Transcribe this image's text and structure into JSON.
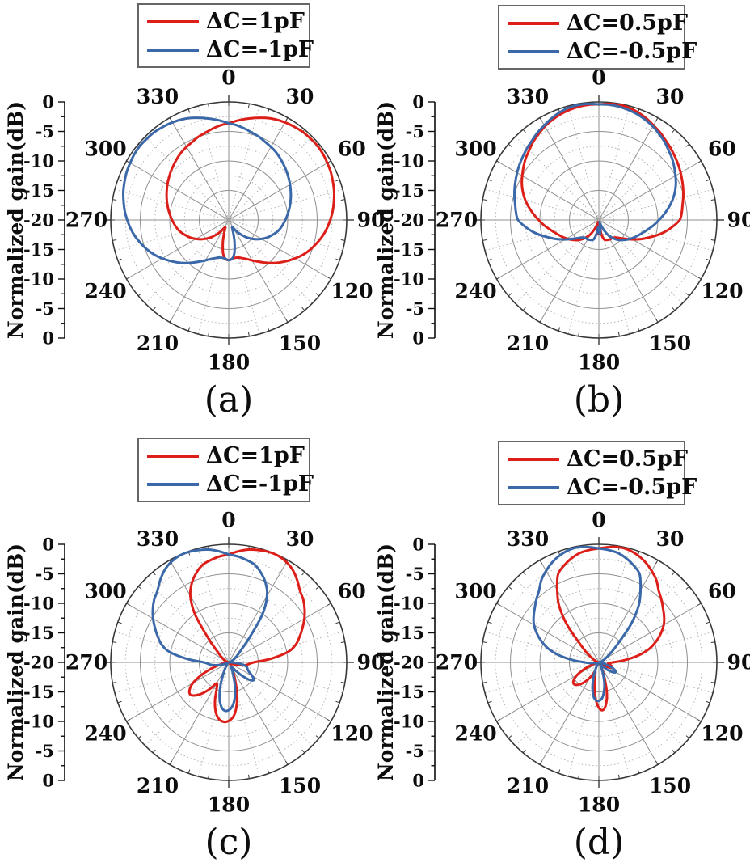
{
  "figure": {
    "axis_label": "Normalized gain(dB)",
    "radial_axis": {
      "tick_labels": [
        "0",
        "-5",
        "-10",
        "-15",
        "-20",
        "-15",
        "-10",
        "-5",
        "0"
      ],
      "range_db": [
        0,
        -20
      ],
      "ring_step_db": 2.5
    },
    "angular_axis": {
      "tick_labels": [
        "0",
        "30",
        "60",
        "90",
        "120",
        "150",
        "180",
        "210",
        "240",
        "270",
        "300",
        "330"
      ],
      "major_step_deg": 30,
      "minor_step_deg": 15
    },
    "colors": {
      "red": "#dd1f1a",
      "blue": "#3a68a8",
      "grid_major": "#8f8f8f",
      "grid_minor": "#b5b5b5",
      "outline": "#383838",
      "text": "#0d0d0d"
    }
  },
  "chart_data": [
    {
      "type": "polar-line",
      "caption": "(a)",
      "series": [
        {
          "name": "ΔC=1pF",
          "color": "#dd1f1a",
          "angle_step_deg": 5,
          "gain_db": [
            -3.6,
            -3.1,
            -2.6,
            -2.1,
            -1.6,
            -1.2,
            -0.9,
            -0.7,
            -0.5,
            -0.45,
            -0.4,
            -0.5,
            -0.7,
            -0.9,
            -1.2,
            -1.5,
            -1.9,
            -2.3,
            -2.8,
            -3.3,
            -3.9,
            -4.6,
            -5.3,
            -6.1,
            -7.0,
            -7.9,
            -8.8,
            -9.7,
            -10.6,
            -11.4,
            -12.1,
            -12.7,
            -13.1,
            -13.4,
            -13.5,
            -13.4,
            -13.2,
            -13.4,
            -14.4,
            -16.2,
            -17.8,
            -18.6,
            -18.4,
            -17.6,
            -16.8,
            -15.9,
            -15.1,
            -14.3,
            -13.6,
            -12.9,
            -12.3,
            -11.7,
            -11.2,
            -10.8,
            -10.4,
            -10.0,
            -9.6,
            -9.2,
            -8.8,
            -8.4,
            -8.0,
            -7.6,
            -7.2,
            -6.8,
            -6.4,
            -6.0,
            -5.7,
            -5.4,
            -5.0,
            -4.7,
            -4.3,
            -3.9
          ]
        },
        {
          "name": "ΔC=-1pF",
          "color": "#3a68a8",
          "angle_step_deg": 5,
          "gain_db": [
            -3.6,
            -3.9,
            -4.3,
            -4.7,
            -5.0,
            -5.4,
            -5.7,
            -6.0,
            -6.4,
            -6.8,
            -7.2,
            -7.6,
            -8.0,
            -8.4,
            -8.8,
            -9.2,
            -9.6,
            -10.0,
            -10.4,
            -10.8,
            -11.2,
            -11.7,
            -12.3,
            -12.9,
            -13.6,
            -14.3,
            -15.1,
            -15.9,
            -16.8,
            -17.6,
            -18.4,
            -18.6,
            -17.8,
            -16.2,
            -14.4,
            -13.4,
            -13.2,
            -13.4,
            -13.5,
            -13.4,
            -13.1,
            -12.7,
            -12.1,
            -11.4,
            -10.6,
            -9.7,
            -8.8,
            -7.9,
            -7.0,
            -6.1,
            -5.3,
            -4.6,
            -3.9,
            -3.3,
            -2.8,
            -2.3,
            -1.9,
            -1.5,
            -1.2,
            -0.9,
            -0.7,
            -0.5,
            -0.4,
            -0.45,
            -0.5,
            -0.7,
            -0.9,
            -1.2,
            -1.6,
            -2.1,
            -2.6,
            -3.1
          ]
        }
      ]
    },
    {
      "type": "polar-line",
      "caption": "(b)",
      "series": [
        {
          "name": "ΔC=0.5pF",
          "color": "#dd1f1a",
          "angle_step_deg": 5,
          "gain_db": [
            -0.4,
            -0.25,
            -0.2,
            -0.3,
            -0.6,
            -1.0,
            -1.5,
            -1.9,
            -2.4,
            -2.8,
            -3.2,
            -3.6,
            -4.0,
            -4.4,
            -4.8,
            -5.2,
            -5.6,
            -5.9,
            -6.3,
            -7.4,
            -8.6,
            -9.9,
            -11.2,
            -12.3,
            -13.4,
            -14.4,
            -15.2,
            -15.8,
            -16.1,
            -16.2,
            -16.2,
            -16.3,
            -16.4,
            -16.6,
            -17.5,
            -18.8,
            -18.0,
            -17.6,
            -18.8,
            -19.6,
            -19.2,
            -18.3,
            -17.3,
            -16.5,
            -15.8,
            -15.2,
            -14.7,
            -14.2,
            -13.7,
            -13.2,
            -12.7,
            -12.1,
            -11.4,
            -10.6,
            -9.8,
            -8.9,
            -8.0,
            -7.1,
            -6.3,
            -5.6,
            -5.0,
            -4.4,
            -3.8,
            -3.3,
            -2.7,
            -2.2,
            -1.7,
            -1.3,
            -0.95,
            -0.7,
            -0.5,
            -0.4
          ]
        },
        {
          "name": "ΔC=-0.5pF",
          "color": "#3a68a8",
          "angle_step_deg": 5,
          "gain_db": [
            -0.4,
            -0.4,
            -0.5,
            -0.7,
            -0.95,
            -1.3,
            -1.7,
            -2.2,
            -2.7,
            -3.3,
            -3.8,
            -4.4,
            -5.0,
            -5.6,
            -6.3,
            -7.1,
            -8.0,
            -8.9,
            -9.8,
            -10.6,
            -11.4,
            -12.1,
            -12.7,
            -13.2,
            -13.7,
            -14.2,
            -14.7,
            -15.2,
            -15.8,
            -16.5,
            -17.3,
            -18.3,
            -19.2,
            -19.6,
            -18.8,
            -17.6,
            -18.0,
            -18.8,
            -17.5,
            -16.6,
            -16.4,
            -16.3,
            -16.2,
            -16.2,
            -16.1,
            -15.8,
            -15.2,
            -14.4,
            -13.4,
            -12.3,
            -11.2,
            -9.9,
            -8.6,
            -7.4,
            -6.3,
            -5.9,
            -5.6,
            -5.2,
            -4.8,
            -4.4,
            -4.0,
            -3.6,
            -3.2,
            -2.8,
            -2.4,
            -1.9,
            -1.5,
            -1.0,
            -0.6,
            -0.3,
            -0.2,
            -0.25
          ]
        }
      ]
    },
    {
      "type": "polar-line",
      "caption": "(c)",
      "series": [
        {
          "name": "ΔC=1pF",
          "color": "#dd1f1a",
          "angle_step_deg": 5,
          "gain_db": [
            -1.7,
            -1.1,
            -0.6,
            -0.3,
            -0.1,
            -0.1,
            -0.4,
            -1.0,
            -1.9,
            -2.9,
            -3.5,
            -4.3,
            -5.2,
            -6.2,
            -7.2,
            -8.2,
            -9.8,
            -12.8,
            -15.8,
            -16.6,
            -17.2,
            -18.3,
            -19.2,
            -19.6,
            -19.8,
            -19.9,
            -19.9,
            -19.8,
            -19.6,
            -19.3,
            -18.9,
            -18.2,
            -16.8,
            -14.6,
            -12.4,
            -10.8,
            -10.1,
            -9.9,
            -10.3,
            -11.4,
            -13.2,
            -15.2,
            -15.9,
            -14.6,
            -13.2,
            -12.1,
            -11.5,
            -11.9,
            -13.0,
            -14.8,
            -16.8,
            -18.4,
            -19.3,
            -19.7,
            -19.9,
            -19.9,
            -19.9,
            -19.8,
            -19.6,
            -19.3,
            -19.0,
            -18.6,
            -18.0,
            -17.0,
            -14.5,
            -10.0,
            -7.0,
            -5.2,
            -3.9,
            -2.9,
            -2.4,
            -2.0
          ]
        },
        {
          "name": "ΔC=-1pF",
          "color": "#3a68a8",
          "angle_step_deg": 5,
          "gain_db": [
            -1.7,
            -2.0,
            -2.4,
            -2.9,
            -3.9,
            -5.2,
            -7.0,
            -10.0,
            -14.5,
            -17.0,
            -18.0,
            -18.6,
            -19.0,
            -19.3,
            -19.6,
            -19.8,
            -19.9,
            -19.9,
            -19.5,
            -18.6,
            -17.4,
            -16.8,
            -16.6,
            -16.2,
            -15.4,
            -14.8,
            -15.4,
            -16.8,
            -18.2,
            -19.0,
            -19.2,
            -18.8,
            -17.8,
            -16.0,
            -14.0,
            -12.6,
            -11.9,
            -11.8,
            -12.5,
            -14.0,
            -16.0,
            -17.8,
            -18.8,
            -19.3,
            -19.6,
            -19.8,
            -19.9,
            -19.9,
            -19.8,
            -19.6,
            -19.2,
            -18.3,
            -17.3,
            -16.6,
            -15.8,
            -12.8,
            -9.8,
            -8.2,
            -7.2,
            -6.2,
            -5.2,
            -4.3,
            -3.5,
            -2.9,
            -1.9,
            -1.0,
            -0.4,
            -0.1,
            -0.1,
            -0.3,
            -0.6,
            -1.1
          ]
        }
      ]
    },
    {
      "type": "polar-line",
      "caption": "(d)",
      "series": [
        {
          "name": "ΔC=0.5pF",
          "color": "#dd1f1a",
          "angle_step_deg": 5,
          "gain_db": [
            -0.7,
            -0.4,
            -0.2,
            -0.3,
            -0.7,
            -1.3,
            -2.1,
            -3.0,
            -4.2,
            -5.0,
            -5.8,
            -6.5,
            -7.3,
            -8.4,
            -9.7,
            -11.2,
            -13.2,
            -15.6,
            -17.6,
            -18.4,
            -18.2,
            -17.8,
            -17.6,
            -17.9,
            -18.6,
            -19.4,
            -19.8,
            -19.9,
            -19.9,
            -19.8,
            -19.5,
            -18.8,
            -17.2,
            -14.8,
            -12.9,
            -11.9,
            -12.3,
            -13.8,
            -15.8,
            -17.4,
            -18.3,
            -18.0,
            -17.1,
            -16.1,
            -15.2,
            -14.6,
            -14.4,
            -14.8,
            -15.8,
            -17.2,
            -18.6,
            -19.4,
            -19.8,
            -19.9,
            -19.9,
            -19.9,
            -19.8,
            -19.7,
            -19.5,
            -19.2,
            -18.8,
            -18.2,
            -17.0,
            -15.2,
            -11.5,
            -8.2,
            -5.9,
            -3.6,
            -2.6,
            -1.8,
            -1.2,
            -0.9
          ]
        },
        {
          "name": "ΔC=-0.5pF",
          "color": "#3a68a8",
          "angle_step_deg": 5,
          "gain_db": [
            -0.7,
            -0.9,
            -1.2,
            -1.8,
            -2.6,
            -3.6,
            -5.9,
            -8.2,
            -11.5,
            -15.2,
            -17.0,
            -18.2,
            -18.8,
            -19.2,
            -19.5,
            -19.7,
            -19.8,
            -19.9,
            -19.9,
            -19.9,
            -19.6,
            -18.9,
            -17.9,
            -17.1,
            -16.7,
            -17.1,
            -18.0,
            -18.9,
            -19.4,
            -19.6,
            -19.4,
            -18.9,
            -17.9,
            -16.4,
            -15.0,
            -13.9,
            -13.5,
            -13.6,
            -14.4,
            -15.8,
            -17.4,
            -18.6,
            -19.2,
            -19.6,
            -19.8,
            -19.9,
            -19.9,
            -19.8,
            -19.6,
            -19.4,
            -19.5,
            -19.6,
            -19.6,
            -18.6,
            -17.6,
            -15.6,
            -13.2,
            -11.2,
            -9.7,
            -8.4,
            -7.3,
            -6.5,
            -5.8,
            -5.0,
            -4.2,
            -3.0,
            -2.1,
            -1.3,
            -0.7,
            -0.3,
            -0.2,
            -0.4
          ]
        }
      ]
    }
  ]
}
